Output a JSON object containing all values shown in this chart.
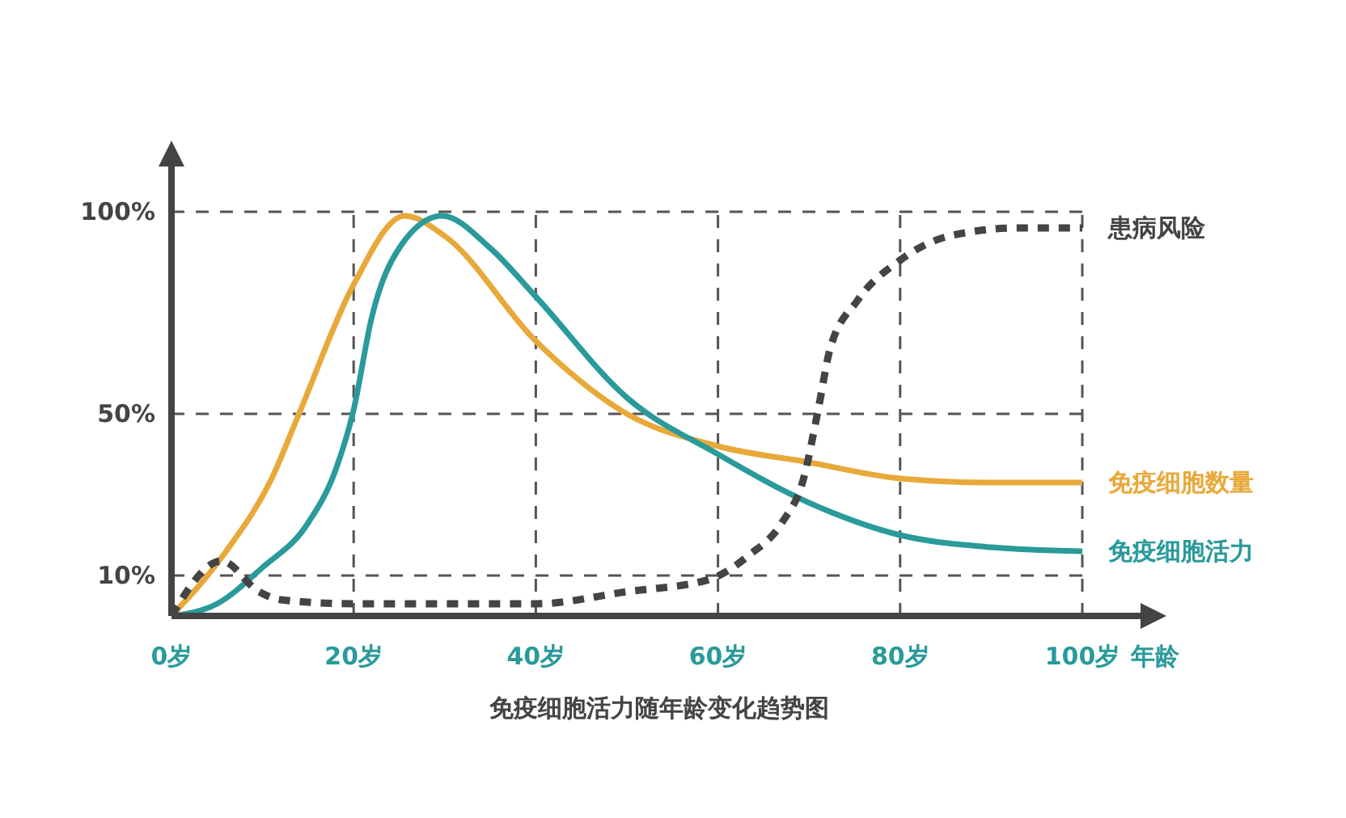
{
  "chart_data": {
    "type": "line",
    "title": "免疫细胞活力随年龄变化趋势图",
    "xlabel": "年龄",
    "xlim": [
      0,
      100
    ],
    "ylim": [
      0,
      100
    ],
    "xticks": [
      {
        "value": 0,
        "label": "0岁"
      },
      {
        "value": 20,
        "label": "20岁"
      },
      {
        "value": 40,
        "label": "40岁"
      },
      {
        "value": 60,
        "label": "60岁"
      },
      {
        "value": 80,
        "label": "80岁"
      },
      {
        "value": 100,
        "label": "100岁"
      }
    ],
    "yticks": [
      {
        "value": 10,
        "label": "10%"
      },
      {
        "value": 50,
        "label": "50%"
      },
      {
        "value": 100,
        "label": "100%"
      }
    ],
    "grid": true,
    "legend": false,
    "marker": "none",
    "series": [
      {
        "name": "免疫细胞数量",
        "color": "#e8a93a",
        "x": [
          0,
          6,
          11,
          14,
          20,
          25.6,
          30,
          40,
          50,
          60,
          70,
          80,
          90,
          100
        ],
        "values": [
          0,
          16,
          34,
          50,
          82,
          99,
          94,
          68,
          50,
          42,
          38,
          34,
          33,
          33
        ]
      },
      {
        "name": "免疫细胞活力",
        "color": "#2a9a9a",
        "x": [
          0,
          5,
          10,
          15,
          18,
          20,
          22,
          25,
          29.7,
          35,
          40,
          50,
          60,
          70,
          80,
          90,
          100
        ],
        "values": [
          0,
          3,
          12,
          23,
          36,
          51,
          74,
          91,
          99,
          91,
          79,
          54,
          40,
          28,
          20,
          17,
          16
        ]
      },
      {
        "name": "患病风险",
        "color": "#444444",
        "line_style": "dashed",
        "x": [
          0,
          5.5,
          9.6,
          12,
          20,
          40,
          50,
          59,
          63.4,
          67,
          69.4,
          71,
          72.3,
          75.3,
          80,
          85.4,
          93,
          100
        ],
        "values": [
          0,
          13.6,
          6,
          4,
          3,
          3,
          6,
          9,
          15,
          23,
          34,
          51,
          66,
          78,
          88,
          94,
          96,
          96
        ]
      }
    ]
  }
}
